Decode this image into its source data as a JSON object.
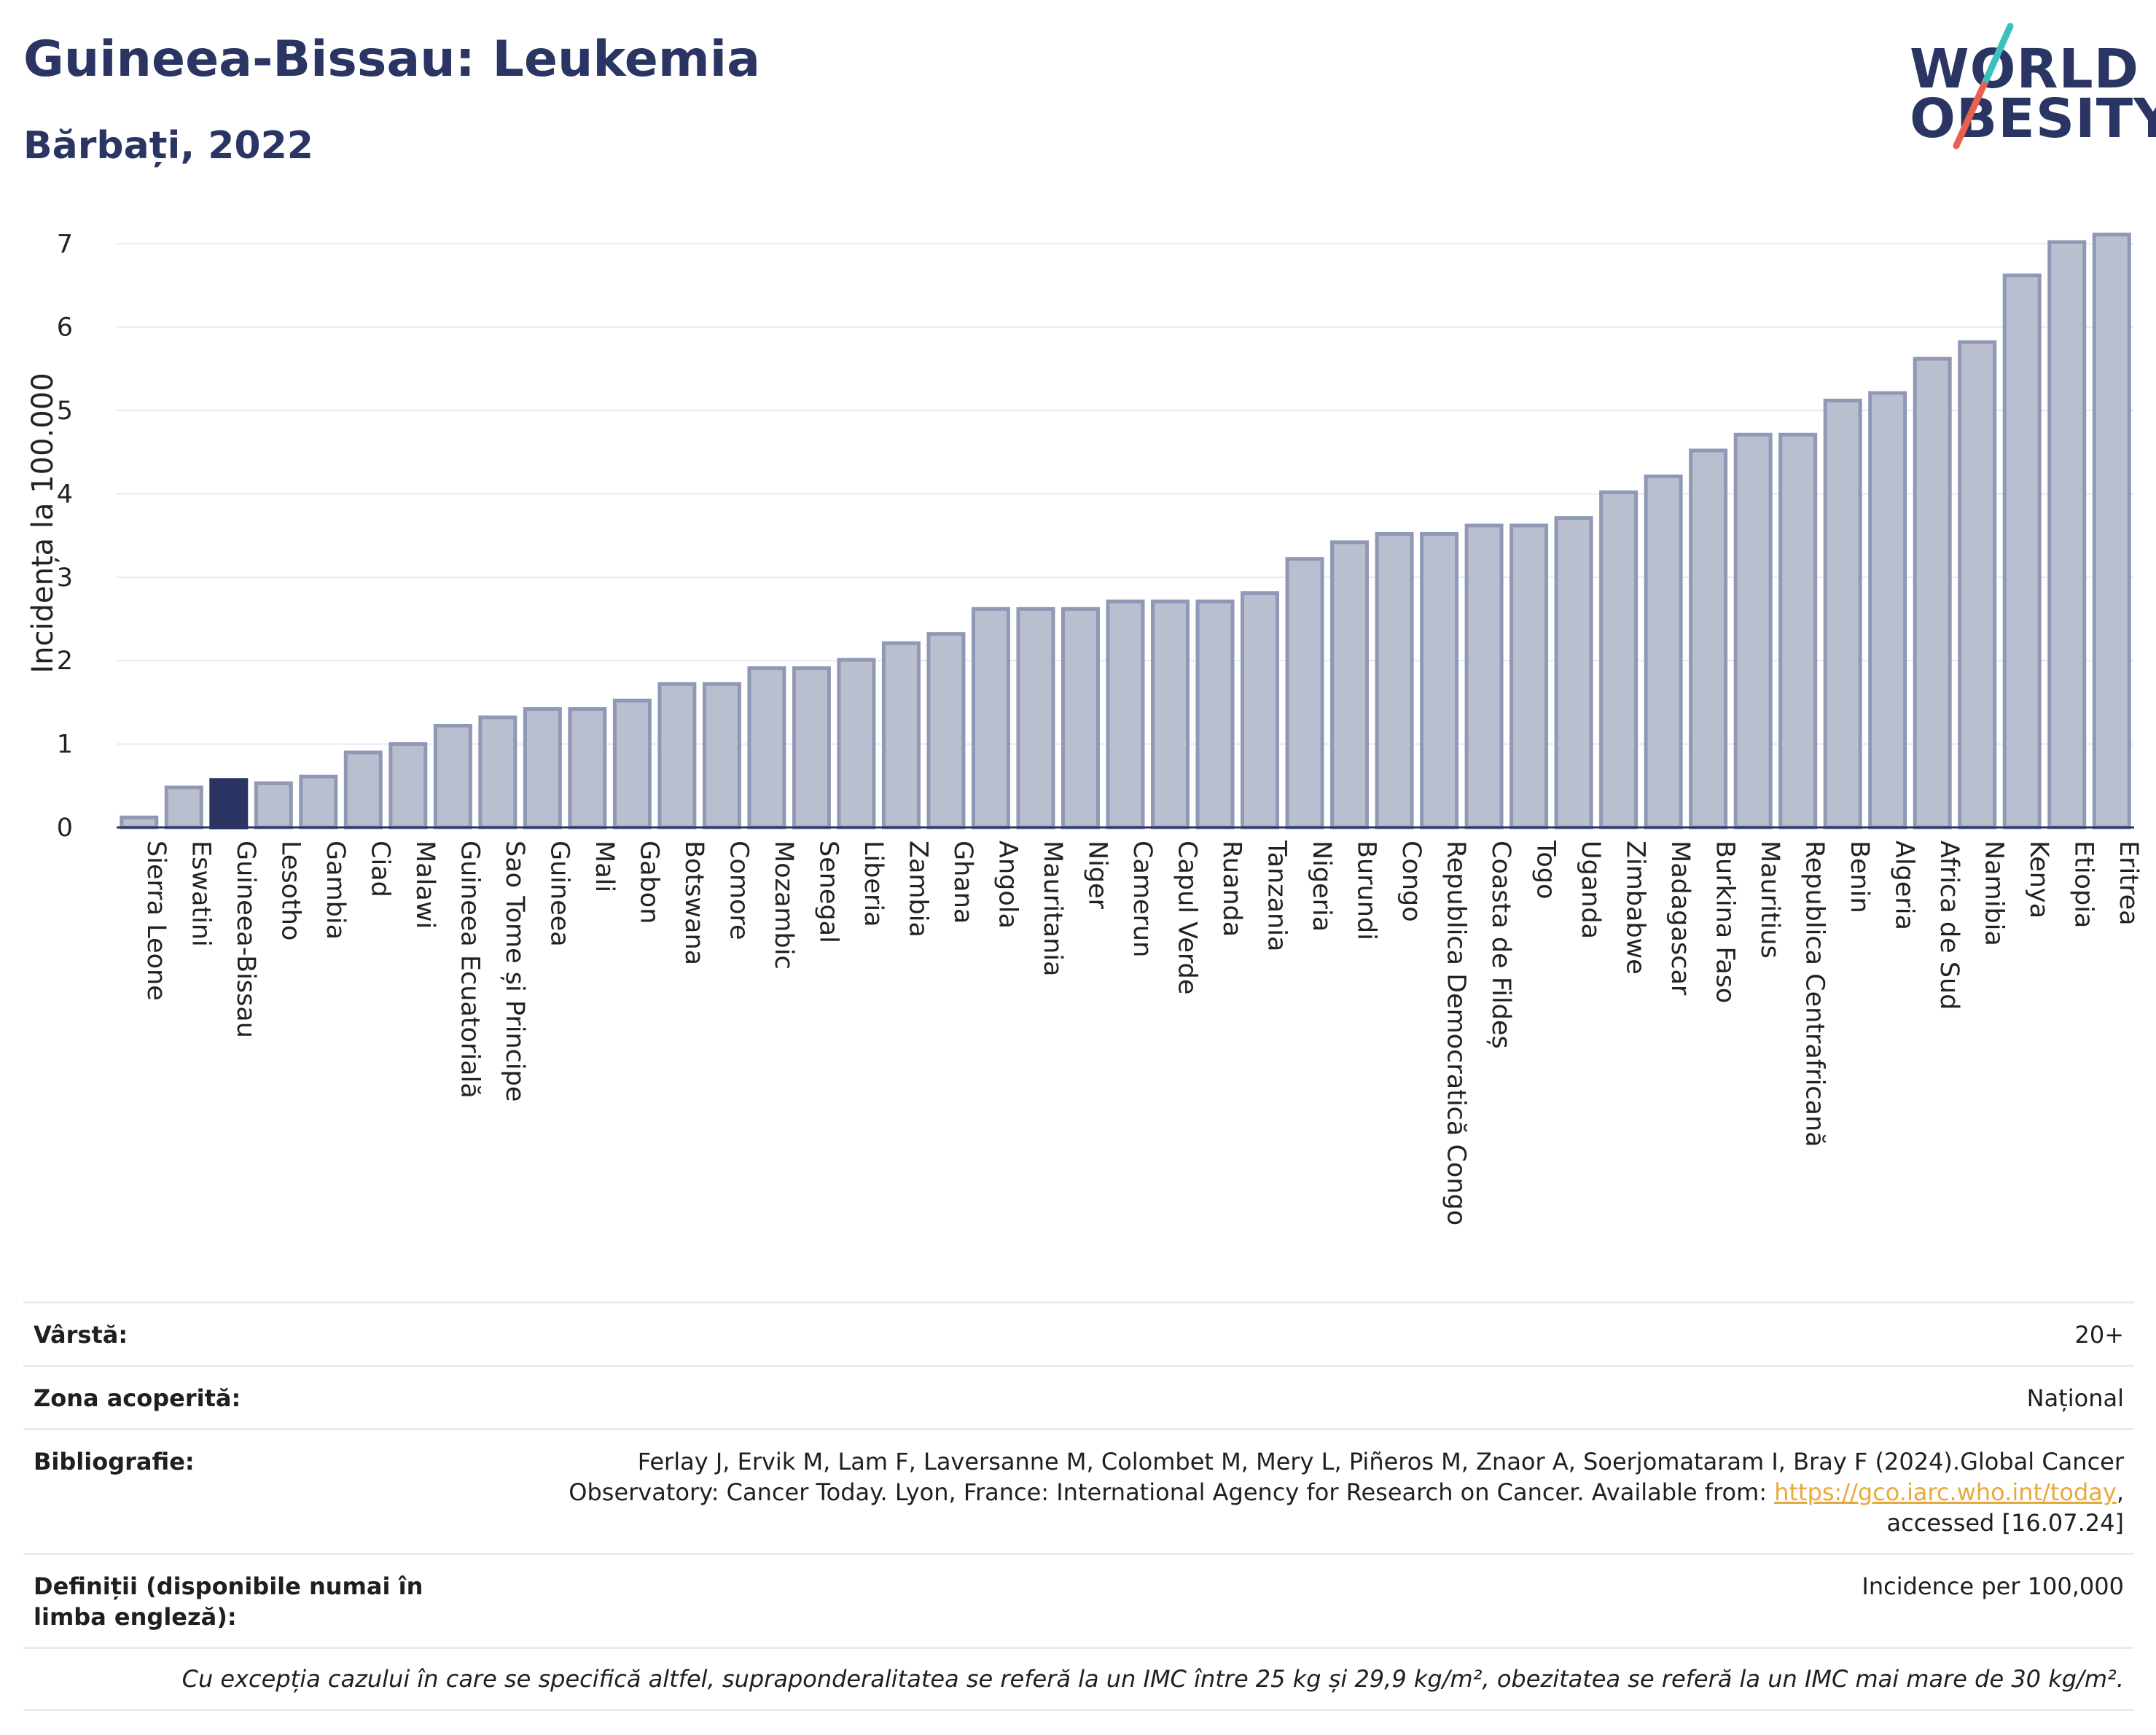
{
  "header": {
    "title": "Guineea-Bissau: Leukemia",
    "subtitle": "Bărbați, 2022",
    "logo_line1": "WORLD",
    "logo_line2": "OBESITY"
  },
  "colors": {
    "bar": "#b9bfcf",
    "bar_stroke": "#8f98b4",
    "highlight": "#2a3563",
    "grid": "#e6e8ef",
    "logo_slash_top": "#3bbfbf",
    "logo_slash_bottom": "#e8604f"
  },
  "chart_data": {
    "type": "bar",
    "ylabel": "Incidența la 100.000",
    "ylim": [
      0,
      7.3
    ],
    "yticks": [
      0,
      1,
      2,
      3,
      4,
      5,
      6,
      7
    ],
    "highlight": "Guineea-Bissau",
    "categories": [
      "Sierra Leone",
      "Eswatini",
      "Guineea-Bissau",
      "Lesotho",
      "Gambia",
      "Ciad",
      "Malawi",
      "Guineea Ecuatorială",
      "Sao Tome și Principe",
      "Guineea",
      "Mali",
      "Gabon",
      "Botswana",
      "Comore",
      "Mozambic",
      "Senegal",
      "Liberia",
      "Zambia",
      "Ghana",
      "Angola",
      "Mauritania",
      "Niger",
      "Camerun",
      "Capul Verde",
      "Ruanda",
      "Tanzania",
      "Nigeria",
      "Burundi",
      "Congo",
      "Republica Democratică Congo",
      "Coasta de Fildeș",
      "Togo",
      "Uganda",
      "Zimbabwe",
      "Madagascar",
      "Burkina Faso",
      "Mauritius",
      "Republica Centrafricană",
      "Benin",
      "Algeria",
      "Africa de Sud",
      "Namibia",
      "Kenya",
      "Etiopia",
      "Eritrea"
    ],
    "values": [
      0.12,
      0.48,
      0.57,
      0.53,
      0.61,
      0.9,
      1.0,
      1.22,
      1.32,
      1.42,
      1.42,
      1.52,
      1.72,
      1.72,
      1.91,
      1.91,
      2.01,
      2.21,
      2.32,
      2.62,
      2.62,
      2.62,
      2.71,
      2.71,
      2.71,
      2.81,
      3.22,
      3.42,
      3.52,
      3.52,
      3.62,
      3.62,
      3.71,
      4.02,
      4.21,
      4.52,
      4.71,
      4.71,
      5.12,
      5.21,
      5.62,
      5.82,
      6.62,
      7.02,
      7.11
    ]
  },
  "info": {
    "age_label": "Vârstă:",
    "age_value": "20+",
    "area_label": "Zona acoperită:",
    "area_value": "Național",
    "biblio_label": "Bibliografie:",
    "biblio_line1": "Ferlay J, Ervik M, Lam F, Laversanne M, Colombet M, Mery L, Piñeros M, Znaor A, Soerjomataram I, Bray F (2024).Global Cancer",
    "biblio_line2": "Observatory: Cancer Today. Lyon, France: International Agency for Research on Cancer. Available from: ",
    "biblio_link": "https://gco.iarc.who.int/today",
    "biblio_line3": "accessed [16.07.24]",
    "def_label": "Definiții (disponibile numai în limba engleză):",
    "def_value": "Incidence per 100,000",
    "footnote": "Cu excepția cazului în care se specifică altfel, supraponderalitatea se referă la un IMC între 25 kg și 29,9 kg/m², obezitatea se referă la un IMC mai mare de 30 kg/m²."
  }
}
